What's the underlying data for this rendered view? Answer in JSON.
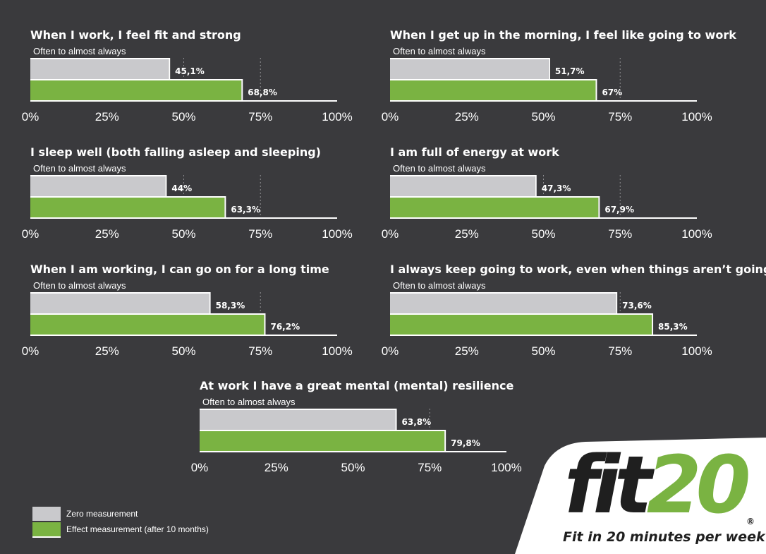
{
  "chart_data": [
    {
      "type": "bar",
      "title": "When I work, I feel fit and strong",
      "subtitle": "Often to almost always",
      "series": [
        {
          "name": "Zero measurement",
          "values": [
            45.1
          ],
          "label": "45,1%"
        },
        {
          "name": "Effect measurement (after 10 months)",
          "values": [
            68.8
          ],
          "label": "68,8%"
        }
      ],
      "xlim": [
        0,
        100
      ],
      "ticks": [
        "0%",
        "25%",
        "50%",
        "75%",
        "100%"
      ]
    },
    {
      "type": "bar",
      "title": "When I get up in the morning, I feel like going to work",
      "subtitle": "Often to almost always",
      "series": [
        {
          "name": "Zero measurement",
          "values": [
            51.7
          ],
          "label": "51,7%"
        },
        {
          "name": "Effect measurement (after 10 months)",
          "values": [
            67
          ],
          "label": "67%"
        }
      ],
      "xlim": [
        0,
        100
      ],
      "ticks": [
        "0%",
        "25%",
        "50%",
        "75%",
        "100%"
      ]
    },
    {
      "type": "bar",
      "title": "I sleep well (both falling asleep and sleeping)",
      "subtitle": "Often to almost always",
      "series": [
        {
          "name": "Zero measurement",
          "values": [
            44
          ],
          "label": "44%"
        },
        {
          "name": "Effect measurement (after 10 months)",
          "values": [
            63.3
          ],
          "label": "63,3%"
        }
      ],
      "xlim": [
        0,
        100
      ],
      "ticks": [
        "0%",
        "25%",
        "50%",
        "75%",
        "100%"
      ]
    },
    {
      "type": "bar",
      "title": "I am full of energy at work",
      "subtitle": "Often to almost always",
      "series": [
        {
          "name": "Zero measurement",
          "values": [
            47.3
          ],
          "label": "47,3%"
        },
        {
          "name": "Effect measurement (after 10 months)",
          "values": [
            67.9
          ],
          "label": "67,9%"
        }
      ],
      "xlim": [
        0,
        100
      ],
      "ticks": [
        "0%",
        "25%",
        "50%",
        "75%",
        "100%"
      ]
    },
    {
      "type": "bar",
      "title": "When I am working, I can go on for a long time",
      "subtitle": "Often to almost always",
      "series": [
        {
          "name": "Zero measurement",
          "values": [
            58.3
          ],
          "label": "58,3%"
        },
        {
          "name": "Effect measurement (after 10 months)",
          "values": [
            76.2
          ],
          "label": "76,2%"
        }
      ],
      "xlim": [
        0,
        100
      ],
      "ticks": [
        "0%",
        "25%",
        "50%",
        "75%",
        "100%"
      ]
    },
    {
      "type": "bar",
      "title": "I always keep going to work, even when things aren’t going well",
      "subtitle": "Often to almost always",
      "series": [
        {
          "name": "Zero measurement",
          "values": [
            73.6
          ],
          "label": "73,6%"
        },
        {
          "name": "Effect measurement (after 10 months)",
          "values": [
            85.3
          ],
          "label": "85,3%"
        }
      ],
      "xlim": [
        0,
        100
      ],
      "ticks": [
        "0%",
        "25%",
        "50%",
        "75%",
        "100%"
      ]
    },
    {
      "type": "bar",
      "title": "At work I have a great mental (mental) resilience",
      "subtitle": "Often to almost always",
      "series": [
        {
          "name": "Zero measurement",
          "values": [
            63.8
          ],
          "label": "63,8%"
        },
        {
          "name": "Effect measurement (after 10 months)",
          "values": [
            79.8
          ],
          "label": "79,8%"
        }
      ],
      "xlim": [
        0,
        100
      ],
      "ticks": [
        "0%",
        "25%",
        "50%",
        "75%",
        "100%"
      ]
    }
  ],
  "legend": {
    "zero": "Zero measurement",
    "effect": "Effect measurement (after 10 months)"
  },
  "colors": {
    "zero": "#c9c9cc",
    "effect": "#7ab342",
    "background": "#3a3a3d"
  },
  "logo": {
    "fit": "fit",
    "twenty": "20",
    "registered": "®",
    "tagline": "Fit in 20 minutes per week"
  }
}
